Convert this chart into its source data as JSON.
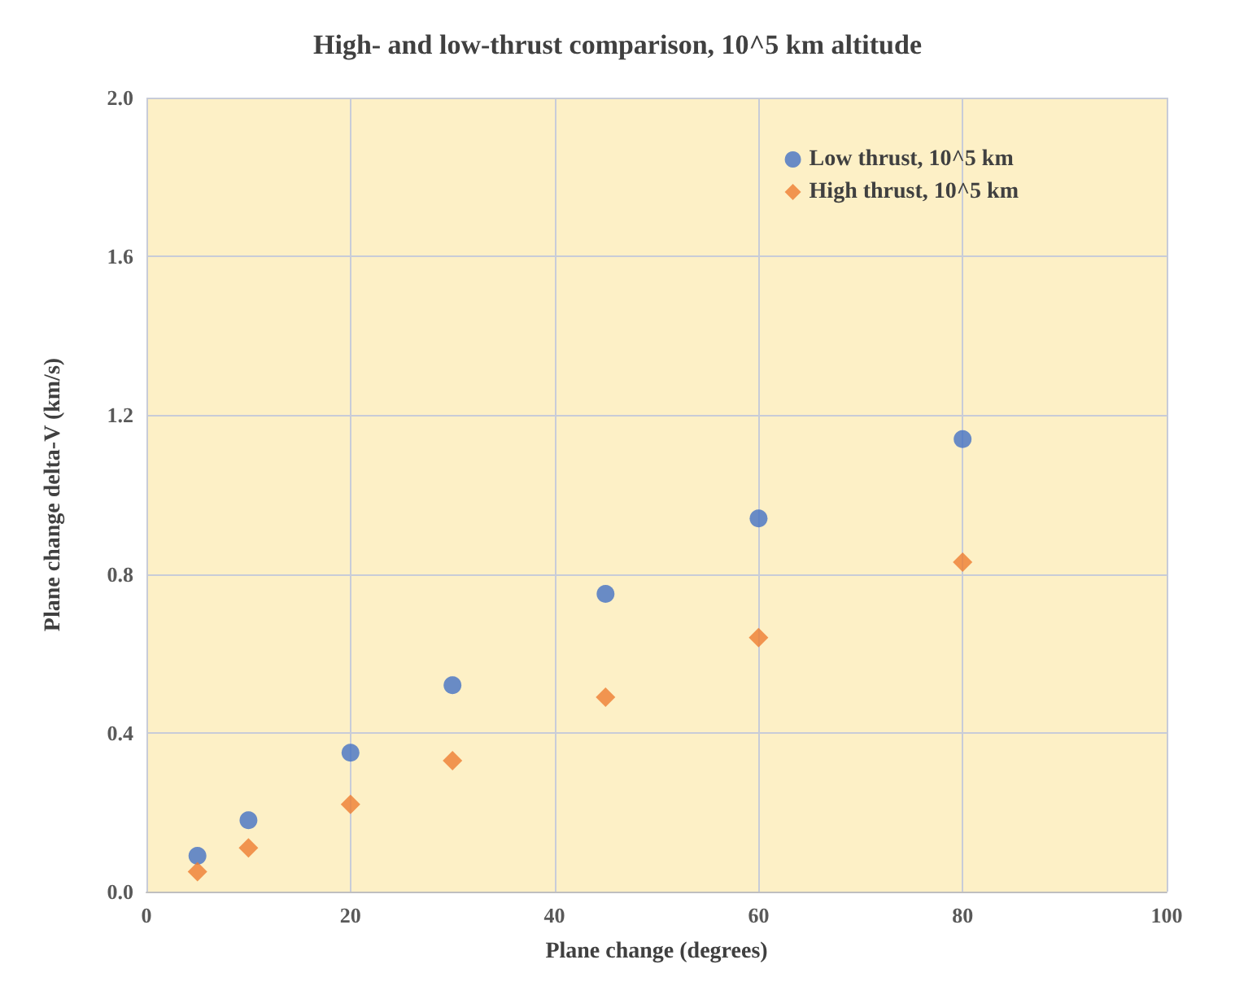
{
  "chart_data": {
    "type": "scatter",
    "title": "High- and low-thrust comparison, 10^5 km altitude",
    "xlabel": "Plane change (degrees)",
    "ylabel": "Plane change delta-V (km/s)",
    "x": [
      5,
      10,
      20,
      30,
      45,
      60,
      80
    ],
    "series": [
      {
        "name": "Low thrust, 10^5 km",
        "color": "#4472c4",
        "marker": "circle",
        "values": [
          0.09,
          0.18,
          0.35,
          0.52,
          0.75,
          0.94,
          1.14
        ]
      },
      {
        "name": "High thrust, 10^5 km",
        "color": "#ed7d31",
        "marker": "diamond",
        "values": [
          0.05,
          0.11,
          0.22,
          0.33,
          0.49,
          0.64,
          0.83
        ]
      }
    ],
    "xlim": [
      0,
      100
    ],
    "xticks": [
      0,
      20,
      40,
      60,
      80,
      100
    ],
    "ylim": [
      0,
      2
    ],
    "yticks": [
      {
        "value": 0,
        "label": "0.0"
      },
      {
        "value": 0.4,
        "label": "0.4"
      },
      {
        "value": 0.8,
        "label": "0.8"
      },
      {
        "value": 1.2,
        "label": "1.2"
      },
      {
        "value": 1.6,
        "label": "1.6"
      },
      {
        "value": 2,
        "label": "2.0"
      }
    ],
    "grid": true,
    "legend": "top right"
  }
}
